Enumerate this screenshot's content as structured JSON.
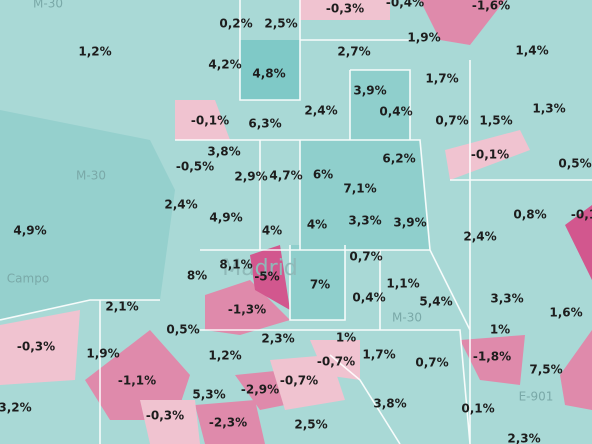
{
  "map": {
    "labels": [
      "0,2%",
      "2,5%",
      "-0,3%",
      "-0,4%",
      "-1,6%",
      "1,2%",
      "4,2%",
      "4,8%",
      "2,7%",
      "1,9%",
      "1,4%",
      "1,7%",
      "3,9%",
      "2,4%",
      "0,4%",
      "0,7%",
      "1,5%",
      "1,3%",
      "-0,1%",
      "6,3%",
      "3,8%",
      "-0,5%",
      "2,9%",
      "4,7%",
      "6%",
      "7,1%",
      "6,2%",
      "-0,1%",
      "0,5%",
      "2,4%",
      "4,9%",
      "4%",
      "4%",
      "3,3%",
      "3,9%",
      "0,8%",
      "-0,1",
      "4,9%",
      "2,4%",
      "0,7%",
      "8,1%",
      "-5%",
      "8%",
      "7%",
      "1,1%",
      "0,4%",
      "5,4%",
      "3,3%",
      "2,1%",
      "-1,3%",
      "1,6%",
      "0,5%",
      "2,3%",
      "1%",
      "1%",
      "-0,3%",
      "1,9%",
      "1,2%",
      "-0,7%",
      "1,7%",
      "0,7%",
      "-1,8%",
      "7,5%",
      "-1,1%",
      "-0,7%",
      "5,3%",
      "-2,9%",
      "3,8%",
      "0,1%",
      "3,2%",
      "-0,3%",
      "-2,3%",
      "2,5%",
      "2,3%"
    ],
    "base_labels": [
      "M-30",
      "M-30",
      "Campo",
      "Madrid",
      "M-30",
      "E-901"
    ]
  }
}
